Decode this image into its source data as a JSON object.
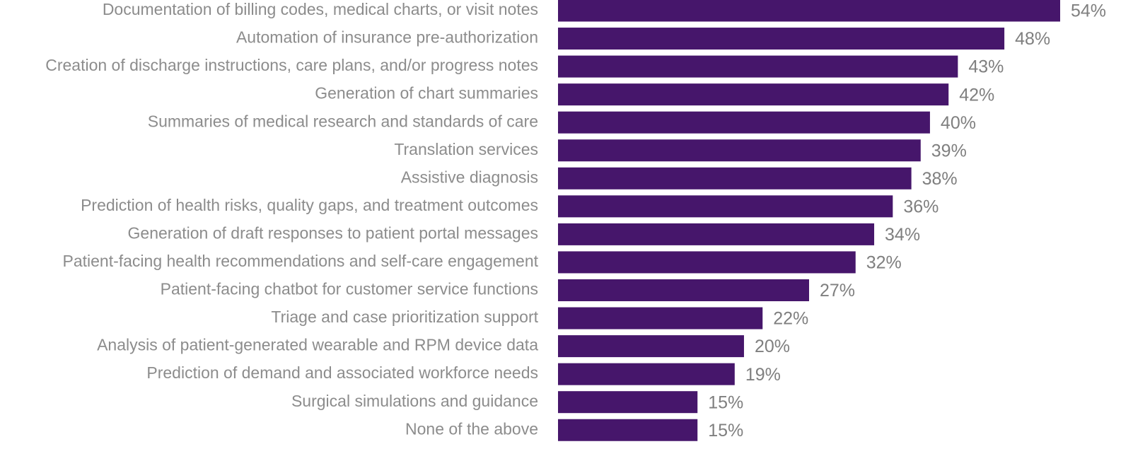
{
  "chart_data": {
    "type": "bar",
    "orientation": "horizontal",
    "color": "#46166b",
    "categories": [
      "Documentation of billing codes, medical charts, or visit notes",
      "Automation of insurance pre-authorization",
      "Creation of discharge instructions, care plans, and/or progress notes",
      "Generation of chart summaries",
      "Summaries of medical research and standards of care",
      "Translation services",
      "Assistive diagnosis",
      "Prediction of health risks, quality gaps, and treatment outcomes",
      "Generation of draft responses to patient portal messages",
      "Patient-facing health recommendations and self-care engagement",
      "Patient-facing chatbot for customer service functions",
      "Triage and case prioritization support",
      "Analysis of patient-generated wearable and RPM device data",
      "Prediction of demand and associated workforce needs",
      "Surgical simulations and guidance",
      "None of the above"
    ],
    "values": [
      54,
      48,
      43,
      42,
      40,
      39,
      38,
      36,
      34,
      32,
      27,
      22,
      20,
      19,
      15,
      15
    ],
    "value_labels": [
      "54%",
      "48%",
      "43%",
      "42%",
      "40%",
      "39%",
      "38%",
      "36%",
      "34%",
      "32%",
      "27%",
      "22%",
      "20%",
      "19%",
      "15%",
      "15%"
    ]
  }
}
